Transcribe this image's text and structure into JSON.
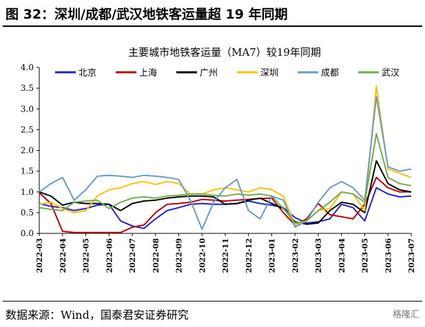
{
  "figure": {
    "title": "图 32：深圳/成都/武汉地铁客运量超 19 年同期",
    "source": "数据来源：Wind，国泰君安证券研究",
    "watermark": "格隆汇"
  },
  "chart_data": {
    "type": "line",
    "title": "主要城市地铁客运量（MA7）较19年同期",
    "xlabel": "",
    "ylabel": "",
    "ylim": [
      0,
      4
    ],
    "yticks": [
      "0.0",
      "0.5",
      "1.0",
      "1.5",
      "2.0",
      "2.5",
      "3.0",
      "3.5",
      "4.0"
    ],
    "x_ticks": [
      "2022-03",
      "2022-04",
      "2022-05",
      "2022-06",
      "2022-07",
      "2022-08",
      "2022-09",
      "2022-10",
      "2022-11",
      "2022-12",
      "2023-01",
      "2023-02",
      "2023-03",
      "2023-04",
      "2023-05",
      "2023-06",
      "2023-07"
    ],
    "x": [
      0,
      0.5,
      1,
      1.5,
      2,
      2.5,
      3,
      3.5,
      4,
      4.5,
      5,
      5.5,
      6,
      6.5,
      7,
      7.5,
      8,
      8.5,
      9,
      9.5,
      10,
      10.5,
      11,
      11.5,
      12,
      12.5,
      13,
      13.5,
      14,
      14.5,
      15,
      15.5,
      16
    ],
    "grid": false,
    "legend_position": "top",
    "series": [
      {
        "name": "北京",
        "color": "#1f1fcf",
        "values": [
          0.72,
          0.65,
          0.62,
          0.55,
          0.6,
          0.68,
          0.7,
          0.3,
          0.18,
          0.12,
          0.35,
          0.55,
          0.62,
          0.7,
          0.72,
          0.7,
          0.7,
          0.72,
          0.78,
          0.72,
          0.68,
          0.62,
          0.38,
          0.25,
          0.28,
          0.35,
          0.7,
          0.62,
          0.3,
          1.1,
          0.95,
          0.88,
          0.9
        ]
      },
      {
        "name": "上海",
        "color": "#c00000",
        "values": [
          0.98,
          0.72,
          0.05,
          0.02,
          0.02,
          0.02,
          0.02,
          0.02,
          0.15,
          0.2,
          0.5,
          0.7,
          0.72,
          0.75,
          0.82,
          0.8,
          0.78,
          0.8,
          0.82,
          0.84,
          0.85,
          0.5,
          0.2,
          0.35,
          0.72,
          0.45,
          0.4,
          0.35,
          0.7,
          1.35,
          1.1,
          1.0,
          1.0
        ]
      },
      {
        "name": "广州",
        "color": "#000000",
        "values": [
          1.0,
          0.9,
          0.68,
          0.75,
          0.72,
          0.72,
          0.7,
          0.55,
          0.72,
          0.78,
          0.8,
          0.85,
          0.88,
          0.9,
          0.9,
          0.88,
          0.7,
          0.72,
          0.8,
          0.85,
          0.72,
          0.6,
          0.28,
          0.22,
          0.25,
          0.55,
          0.75,
          0.7,
          0.5,
          1.75,
          1.2,
          1.05,
          1.0
        ]
      },
      {
        "name": "深圳",
        "color": "#ffc000",
        "values": [
          0.7,
          0.75,
          0.6,
          0.5,
          0.55,
          0.9,
          1.05,
          1.1,
          1.2,
          1.25,
          1.18,
          1.25,
          1.2,
          0.95,
          0.95,
          1.05,
          1.1,
          1.05,
          1.0,
          1.1,
          1.05,
          0.9,
          0.2,
          0.3,
          0.55,
          0.6,
          1.0,
          0.95,
          0.55,
          3.55,
          1.55,
          1.45,
          1.35
        ]
      },
      {
        "name": "成都",
        "color": "#6699cc",
        "values": [
          1.0,
          1.2,
          1.35,
          0.8,
          1.05,
          1.38,
          1.4,
          1.38,
          1.35,
          1.4,
          1.38,
          1.35,
          1.3,
          0.8,
          0.1,
          0.75,
          1.1,
          1.3,
          0.55,
          0.35,
          0.9,
          0.8,
          0.15,
          0.3,
          0.75,
          1.1,
          1.25,
          1.1,
          0.8,
          3.3,
          1.6,
          1.5,
          1.55
        ]
      },
      {
        "name": "武汉",
        "color": "#70ad47",
        "values": [
          0.62,
          0.58,
          0.55,
          0.75,
          0.78,
          0.8,
          0.6,
          0.75,
          0.85,
          0.88,
          0.85,
          0.9,
          0.92,
          0.95,
          0.95,
          0.92,
          0.9,
          0.95,
          0.92,
          0.95,
          0.9,
          0.6,
          0.25,
          0.3,
          0.55,
          0.75,
          1.0,
          0.95,
          0.75,
          2.4,
          1.35,
          1.2,
          1.15
        ]
      }
    ]
  }
}
